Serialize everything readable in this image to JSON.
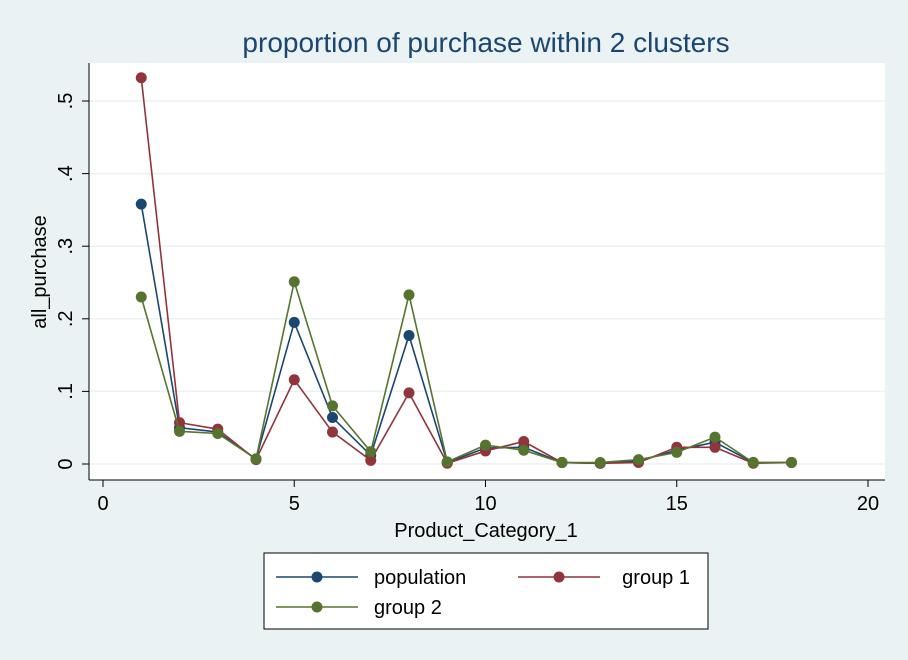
{
  "chart_data": {
    "type": "line",
    "title": "proportion of purchase within 2 clusters",
    "xlabel": "Product_Category_1",
    "ylabel": "all_purchase",
    "xlim": [
      0,
      20
    ],
    "ylim": [
      0,
      0.55
    ],
    "xticks": [
      0,
      5,
      10,
      15,
      20
    ],
    "xtick_labels": [
      "0",
      "5",
      "10",
      "15",
      "20"
    ],
    "yticks": [
      0,
      0.1,
      0.2,
      0.3,
      0.4,
      0.5
    ],
    "ytick_labels": [
      "0",
      ".1",
      ".2",
      ".3",
      ".4",
      ".5"
    ],
    "grid": true,
    "legend_position": "bottom",
    "x": [
      1,
      2,
      3,
      4,
      5,
      6,
      7,
      8,
      9,
      10,
      11,
      12,
      13,
      14,
      15,
      16,
      17,
      18
    ],
    "series": [
      {
        "name": "population",
        "color": "#1a476f",
        "values": [
          0.358,
          0.05,
          0.044,
          0.007,
          0.195,
          0.064,
          0.012,
          0.177,
          0.002,
          0.022,
          0.023,
          0.002,
          0.001,
          0.004,
          0.019,
          0.03,
          0.002,
          0.002
        ]
      },
      {
        "name": "group 1",
        "color": "#90353b",
        "values": [
          0.532,
          0.057,
          0.048,
          0.006,
          0.116,
          0.044,
          0.005,
          0.098,
          0.001,
          0.018,
          0.031,
          0.002,
          0.001,
          0.002,
          0.023,
          0.023,
          0.001,
          0.002
        ]
      },
      {
        "name": "group 2",
        "color": "#55752f",
        "values": [
          0.23,
          0.045,
          0.042,
          0.007,
          0.251,
          0.08,
          0.017,
          0.233,
          0.003,
          0.026,
          0.019,
          0.002,
          0.002,
          0.006,
          0.016,
          0.037,
          0.002,
          0.002
        ]
      }
    ]
  }
}
